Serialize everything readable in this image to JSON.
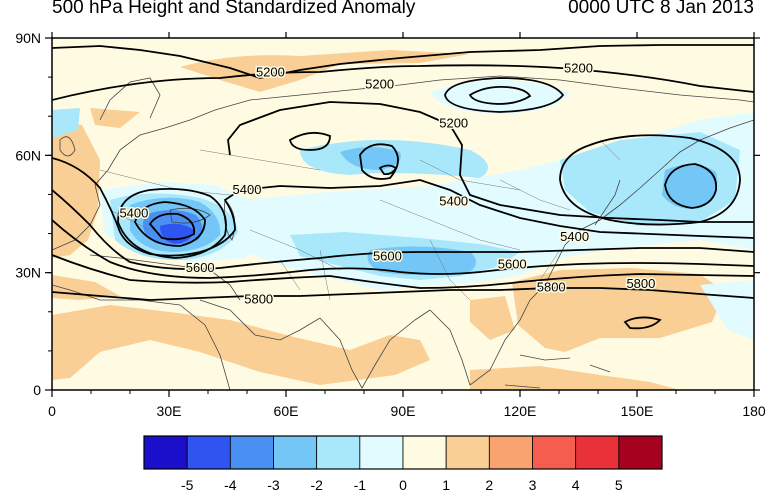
{
  "header": {
    "title": "500 hPa Height and Standardized Anomaly",
    "valid_time": "0000 UTC 8 Jan 2013"
  },
  "map": {
    "lon_ticks": [
      "0",
      "30E",
      "60E",
      "90E",
      "120E",
      "150E",
      "180"
    ],
    "lat_ticks": [
      "0",
      "30N",
      "60N",
      "90N"
    ],
    "lon_range": [
      0,
      180
    ],
    "lat_range": [
      0,
      90
    ],
    "contour_labels": [
      {
        "text": "5200",
        "lon": 56,
        "lat": 81
      },
      {
        "text": "5200",
        "lon": 84,
        "lat": 78
      },
      {
        "text": "5200",
        "lon": 135,
        "lat": 82
      },
      {
        "text": "5200",
        "lon": 103,
        "lat": 68
      },
      {
        "text": "5400",
        "lon": 50,
        "lat": 51
      },
      {
        "text": "5400",
        "lon": 21,
        "lat": 45
      },
      {
        "text": "5400",
        "lon": 103,
        "lat": 48
      },
      {
        "text": "5400",
        "lon": 134,
        "lat": 39
      },
      {
        "text": "5600",
        "lon": 38,
        "lat": 31
      },
      {
        "text": "5600",
        "lon": 86,
        "lat": 34
      },
      {
        "text": "5600",
        "lon": 118,
        "lat": 32
      },
      {
        "text": "5800",
        "lon": 53,
        "lat": 23
      },
      {
        "text": "5800",
        "lon": 128,
        "lat": 26
      },
      {
        "text": "5800",
        "lon": 151,
        "lat": 27
      }
    ]
  },
  "colorbar": {
    "labels": [
      "-5",
      "-4",
      "-3",
      "-2",
      "-1",
      "0",
      "1",
      "2",
      "3",
      "4",
      "5"
    ],
    "colors": [
      "#1c0fcc",
      "#2e55f0",
      "#4a90f3",
      "#73c6f5",
      "#a9e7fb",
      "#e2fbff",
      "#fffbe2",
      "#f9cf95",
      "#f9a470",
      "#f55d4f",
      "#e83138",
      "#a5021f"
    ]
  }
}
